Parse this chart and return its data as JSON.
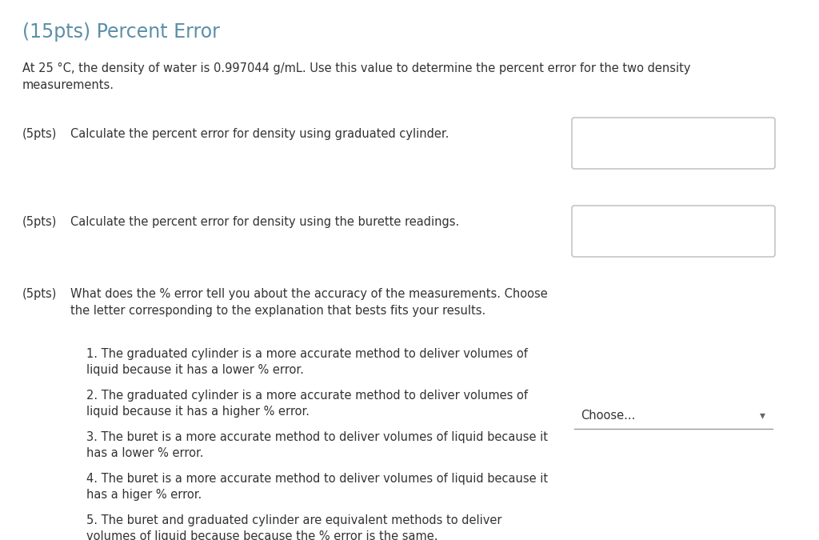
{
  "title": "(15pts) Percent Error",
  "title_color": "#5b8fa8",
  "background_color": "#ffffff",
  "text_color": "#333333",
  "intro_text": "At 25 °C, the density of water is 0.997044 g/mL. Use this value to determine the percent error for the two density\nmeasurements.",
  "q1_label": "(5pts)",
  "q1_text": "Calculate the percent error for density using graduated cylinder.",
  "q2_label": "(5pts)",
  "q2_text": "Calculate the percent error for density using the burette readings.",
  "q3_label": "(5pts)",
  "q3_subtext": "What does the % error tell you about the accuracy of the measurements. Choose\nthe letter corresponding to the explanation that bests fits your results.",
  "list_items": [
    "The graduated cylinder is a more accurate method to deliver volumes of\nliquid because it has a lower % error.",
    "The graduated cylinder is a more accurate method to deliver volumes of\nliquid because it has a higher % error.",
    "The buret is a more accurate method to deliver volumes of liquid because it\nhas a lower % error.",
    "The buret is a more accurate method to deliver volumes of liquid because it\nhas a higer % error.",
    "The buret and graduated cylinder are equivalent methods to deliver\nvolumes of liquid because because the % error is the same."
  ],
  "dropdown_text": "Choose...",
  "box_color": "#ffffff",
  "box_edge_color": "#bbbbbb",
  "dropdown_line_color": "#999999",
  "font_size_title": 17,
  "font_size_body": 10.5,
  "font_size_list": 10.5
}
